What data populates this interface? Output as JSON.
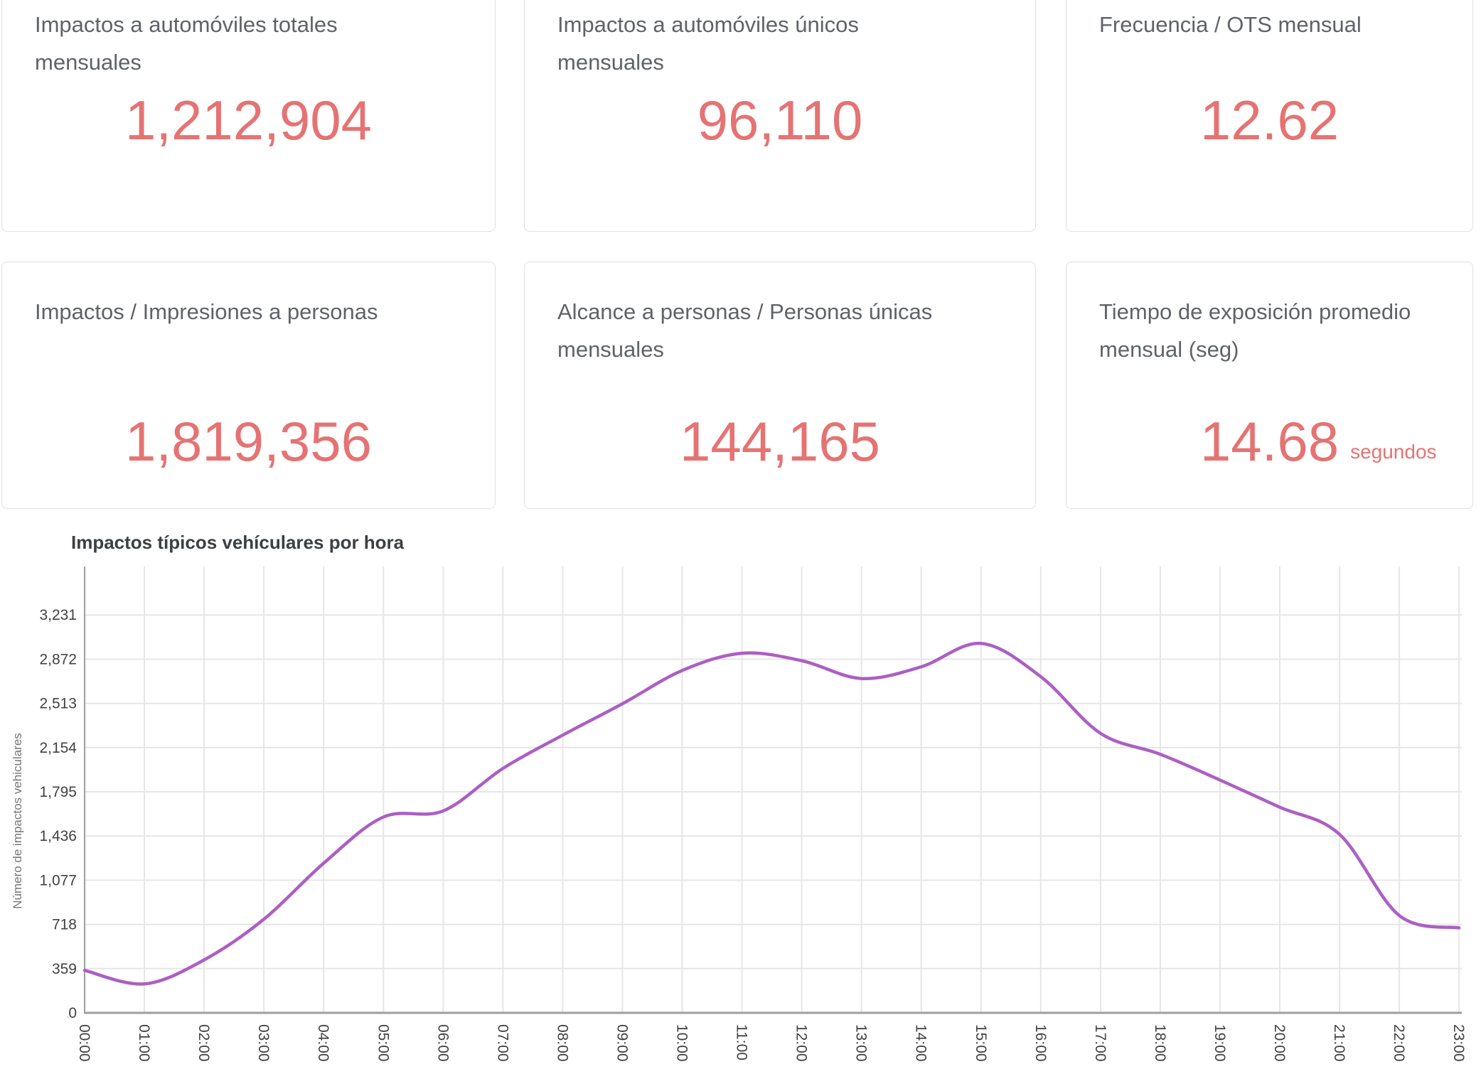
{
  "theme": {
    "accent_value_color": "#e57373",
    "card_title_color": "#5f6368",
    "chart_title_color": "#3c4043",
    "line_color": "#ac5fc3",
    "grid_color": "#e6e6e6",
    "axis_color": "#9e9e9e",
    "tick_color": "#424242",
    "axis_title_color": "#757575"
  },
  "cards": [
    {
      "title": "Impactos a automóviles totales mensuales",
      "value": "1,212,904",
      "suffix": ""
    },
    {
      "title": "Impactos a automóviles únicos mensuales",
      "value": "96,110",
      "suffix": ""
    },
    {
      "title": "Frecuencia / OTS mensual",
      "value": "12.62",
      "suffix": ""
    },
    {
      "title": "Impactos / Impresiones a personas",
      "value": "1,819,356",
      "suffix": ""
    },
    {
      "title": "Alcance a personas / Personas únicas mensuales",
      "value": "144,165",
      "suffix": ""
    },
    {
      "title": "Tiempo de exposición promedio mensual (seg)",
      "value": "14.68",
      "suffix": "segundos"
    }
  ],
  "chart_data": {
    "type": "line",
    "title": "Impactos típicos vehículares por hora",
    "xlabel": "",
    "ylabel": "Número de impactos vehiculares",
    "categories": [
      "00:00",
      "01:00",
      "02:00",
      "03:00",
      "04:00",
      "05:00",
      "06:00",
      "07:00",
      "08:00",
      "09:00",
      "10:00",
      "11:00",
      "12:00",
      "13:00",
      "14:00",
      "15:00",
      "16:00",
      "17:00",
      "18:00",
      "19:00",
      "20:00",
      "21:00",
      "22:00",
      "23:00"
    ],
    "values": [
      345,
      235,
      430,
      760,
      1215,
      1590,
      1640,
      1985,
      2255,
      2510,
      2780,
      2920,
      2860,
      2715,
      2810,
      3000,
      2730,
      2270,
      2100,
      1890,
      1670,
      1450,
      790,
      690
    ],
    "yticks": [
      0,
      359,
      718,
      1077,
      1436,
      1795,
      2154,
      2513,
      2872,
      3231
    ],
    "ytick_labels": [
      "0",
      "359",
      "718",
      "1,077",
      "1,436",
      "1,795",
      "2,154",
      "2,513",
      "2,872",
      "3,231"
    ],
    "ylim": [
      0,
      3590
    ],
    "grid": true,
    "legend": "none",
    "smooth": true
  }
}
